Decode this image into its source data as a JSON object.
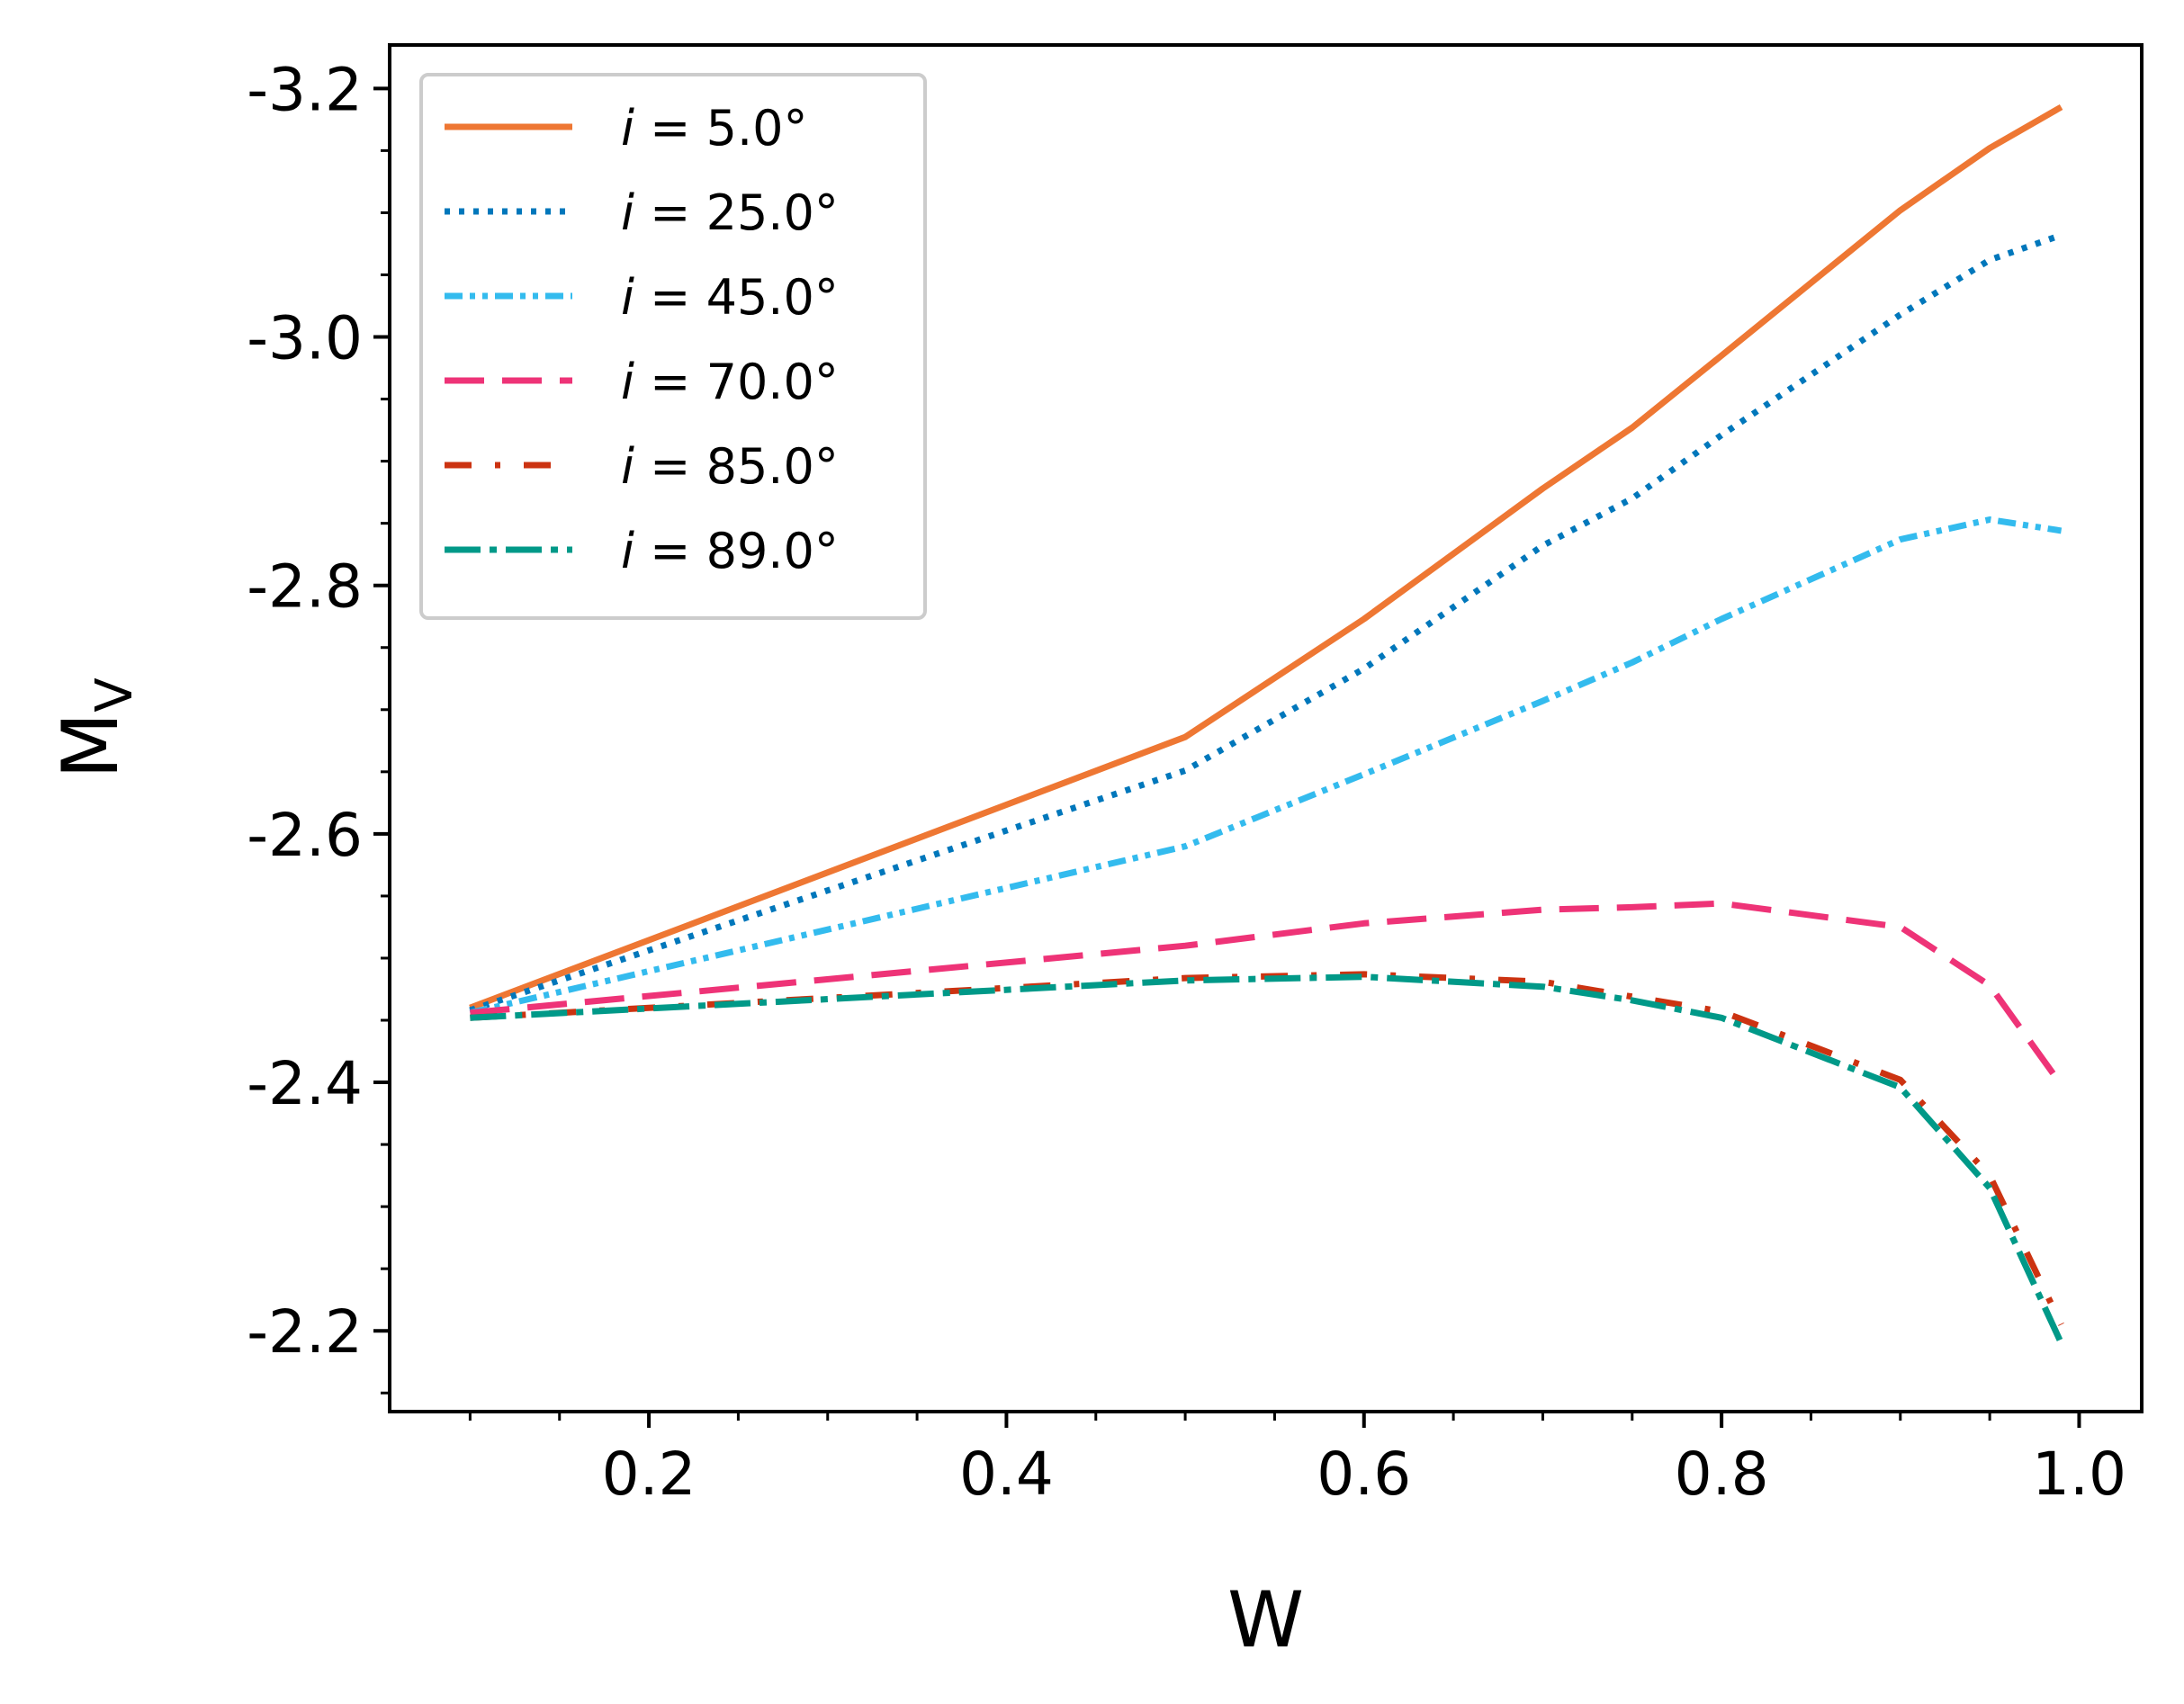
{
  "chart_data": {
    "type": "line",
    "title": "",
    "xlabel": "W",
    "ylabel_main": "M",
    "ylabel_sub": "V",
    "xlim": [
      0.055,
      1.035
    ],
    "ylim": [
      -2.135,
      -3.235
    ],
    "xticks_major": [
      0.2,
      0.4,
      0.6,
      0.8,
      1.0
    ],
    "xtick_labels": [
      "0.2",
      "0.4",
      "0.6",
      "0.8",
      "1.0"
    ],
    "xticks_minor": [
      0.1,
      0.15,
      0.25,
      0.3,
      0.35,
      0.45,
      0.5,
      0.55,
      0.65,
      0.7,
      0.75,
      0.85,
      0.9,
      0.95
    ],
    "yticks_major": [
      -3.2,
      -3.0,
      -2.8,
      -2.6,
      -2.4,
      -2.2
    ],
    "ytick_labels": [
      "-3.2",
      "-3.0",
      "-2.8",
      "-2.6",
      "-2.4",
      "-2.2"
    ],
    "yticks_minor": [
      -3.15,
      -3.1,
      -3.05,
      -2.95,
      -2.9,
      -2.85,
      -2.75,
      -2.7,
      -2.65,
      -2.55,
      -2.5,
      -2.45,
      -2.35,
      -2.3,
      -2.25,
      -2.15
    ],
    "legend_position": "upper-left",
    "legend_prefix": "i",
    "x": [
      0.1,
      0.5,
      0.6,
      0.7,
      0.75,
      0.8,
      0.9,
      0.95,
      0.99
    ],
    "series": [
      {
        "name": "i = 5.0°",
        "label": " = 5.0°",
        "color": "#EE7733",
        "dash": "solid",
        "values": [
          -2.46,
          -2.678,
          -2.773,
          -2.878,
          -2.927,
          -2.985,
          -3.102,
          -3.152,
          -3.185
        ]
      },
      {
        "name": "i = 25.0°",
        "label": " = 25.0°",
        "color": "#0077BB",
        "dash": "dotted",
        "values": [
          -2.458,
          -2.651,
          -2.733,
          -2.832,
          -2.87,
          -2.921,
          -3.018,
          -3.062,
          -3.082
        ]
      },
      {
        "name": "i = 45.0°",
        "label": " = 45.0°",
        "color": "#33BBEE",
        "dash": "dashdotdot",
        "values": [
          -2.456,
          -2.59,
          -2.648,
          -2.707,
          -2.738,
          -2.773,
          -2.837,
          -2.853,
          -2.844
        ]
      },
      {
        "name": "i = 70.0°",
        "label": " = 70.0°",
        "color": "#EE3377",
        "dash": "dashed",
        "values": [
          -2.456,
          -2.51,
          -2.528,
          -2.539,
          -2.541,
          -2.544,
          -2.525,
          -2.478,
          -2.398
        ]
      },
      {
        "name": "i = 85.0°",
        "label": " = 85.0°",
        "color": "#CC3311",
        "dash": "dashdot",
        "values": [
          -2.452,
          -2.484,
          -2.487,
          -2.481,
          -2.469,
          -2.457,
          -2.402,
          -2.325,
          -2.205
        ]
      },
      {
        "name": "i = 89.0°",
        "label": " = 89.0°",
        "color": "#009988",
        "dash": "longdash",
        "values": [
          -2.452,
          -2.482,
          -2.485,
          -2.477,
          -2.466,
          -2.452,
          -2.396,
          -2.315,
          -2.19
        ]
      }
    ]
  }
}
